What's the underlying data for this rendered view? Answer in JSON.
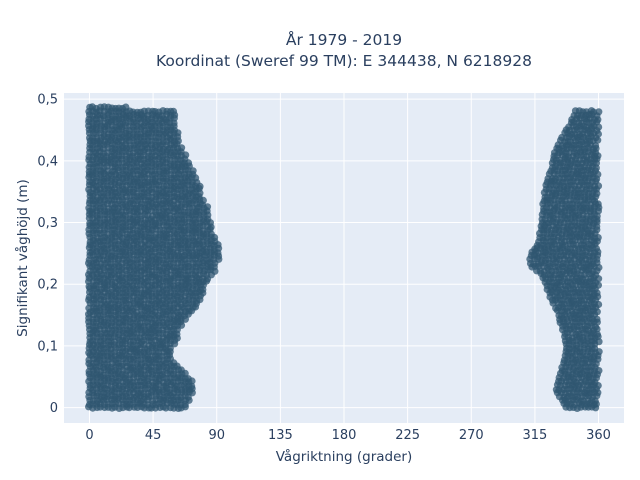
{
  "chart_data": {
    "type": "scatter",
    "title": "År 1979 - 2019",
    "subtitle": "Koordinat (Sweref 99 TM): E 344438, N 6218928",
    "xlabel": "Vågriktning (grader)",
    "ylabel": "Signifikant våghöjd (m)",
    "xlim": [
      -18,
      378
    ],
    "ylim": [
      -0.025,
      0.51
    ],
    "x_ticks": [
      0,
      45,
      90,
      135,
      180,
      225,
      270,
      315,
      360
    ],
    "x_tick_labels": [
      "0",
      "45",
      "90",
      "135",
      "180",
      "225",
      "270",
      "315",
      "360"
    ],
    "y_ticks": [
      0,
      0.1,
      0.2,
      0.3,
      0.4,
      0.5
    ],
    "y_tick_labels": [
      "0",
      "0,1",
      "0,2",
      "0,3",
      "0,4",
      "0,5"
    ],
    "grid": true,
    "marker_color": "#2f5570",
    "plot_background": "#e5ecf6",
    "clusters": [
      {
        "name": "cluster-north-east",
        "x_min_edge": [
          [
            0,
            0
          ],
          [
            0.5,
            0
          ]
        ],
        "x_max_edge": [
          [
            0,
            68
          ],
          [
            0.03,
            74
          ],
          [
            0.05,
            72
          ],
          [
            0.08,
            58
          ],
          [
            0.1,
            60
          ],
          [
            0.12,
            64
          ],
          [
            0.14,
            66
          ],
          [
            0.16,
            75
          ],
          [
            0.18,
            80
          ],
          [
            0.2,
            83
          ],
          [
            0.22,
            88
          ],
          [
            0.24,
            92
          ],
          [
            0.26,
            92
          ],
          [
            0.28,
            88
          ],
          [
            0.3,
            86
          ],
          [
            0.32,
            84
          ],
          [
            0.34,
            80
          ],
          [
            0.36,
            78
          ],
          [
            0.38,
            75
          ],
          [
            0.4,
            70
          ],
          [
            0.42,
            65
          ],
          [
            0.44,
            64
          ],
          [
            0.46,
            60
          ],
          [
            0.48,
            60
          ],
          [
            0.49,
            5
          ]
        ]
      },
      {
        "name": "cluster-north-west",
        "x_min_edge": [
          [
            0,
            337
          ],
          [
            0.03,
            330
          ],
          [
            0.05,
            333
          ],
          [
            0.08,
            336
          ],
          [
            0.1,
            337
          ],
          [
            0.12,
            336
          ],
          [
            0.14,
            333
          ],
          [
            0.16,
            330
          ],
          [
            0.18,
            326
          ],
          [
            0.2,
            323
          ],
          [
            0.22,
            318
          ],
          [
            0.23,
            312
          ],
          [
            0.25,
            312
          ],
          [
            0.27,
            318
          ],
          [
            0.3,
            320
          ],
          [
            0.33,
            321
          ],
          [
            0.36,
            323
          ],
          [
            0.38,
            326
          ],
          [
            0.4,
            328
          ],
          [
            0.42,
            330
          ],
          [
            0.44,
            335
          ],
          [
            0.46,
            340
          ],
          [
            0.48,
            344
          ]
        ],
        "x_max_edge": [
          [
            0,
            360
          ],
          [
            0.48,
            360
          ]
        ]
      }
    ]
  }
}
